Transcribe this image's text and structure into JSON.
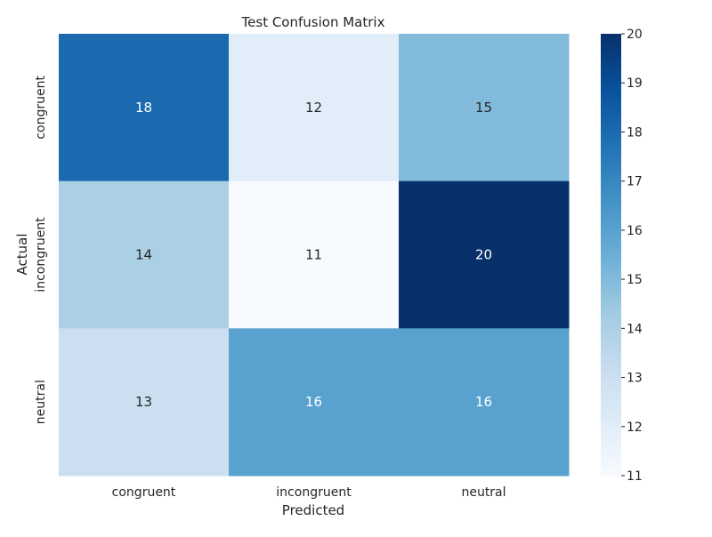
{
  "chart_data": {
    "type": "heatmap",
    "title": "Test Confusion Matrix",
    "xlabel": "Predicted",
    "ylabel": "Actual",
    "x_categories": [
      "congruent",
      "incongruent",
      "neutral"
    ],
    "y_categories": [
      "congruent",
      "incongruent",
      "neutral"
    ],
    "values": [
      [
        18,
        12,
        15
      ],
      [
        14,
        11,
        20
      ],
      [
        13,
        16,
        16
      ]
    ],
    "colormap": "Blues",
    "color_range": [
      11,
      20
    ],
    "colorbar_ticks": [
      11,
      12,
      13,
      14,
      15,
      16,
      17,
      18,
      19,
      20
    ],
    "annotations": true,
    "grid": false,
    "colorbar_position": "right"
  }
}
